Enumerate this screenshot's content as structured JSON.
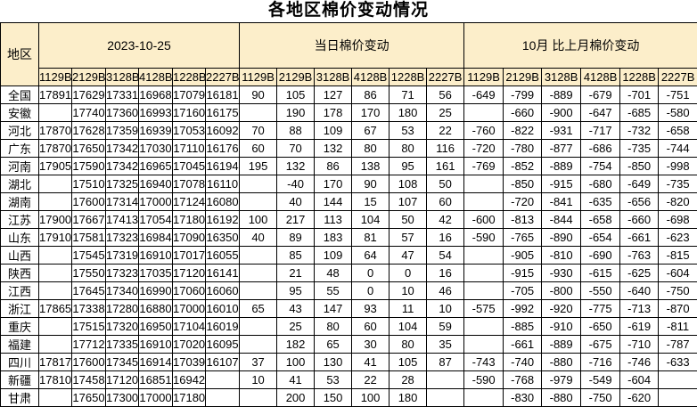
{
  "title": "各地区棉价变动情况",
  "colors": {
    "header_bg": "#FCEECA",
    "border": "#000000",
    "positive_change": "#FF0000",
    "negative_change": "#0070C0"
  },
  "chart_data": {
    "type": "table",
    "title": "各地区棉价变动情况",
    "region_column_header": "地区",
    "sections": [
      {
        "label": "2023-10-25",
        "columns": [
          "1129B",
          "2129B",
          "3128B",
          "4128B",
          "1228B",
          "2227B"
        ]
      },
      {
        "label": "当日棉价变动",
        "columns": [
          "1129B",
          "2129B",
          "3128B",
          "4128B",
          "1228B",
          "2227B"
        ]
      },
      {
        "label": "10月 比上月棉价变动",
        "columns": [
          "1129B",
          "2129B",
          "3128B",
          "4128B",
          "1228B",
          "2227B"
        ]
      }
    ],
    "rows": [
      {
        "region": "全国",
        "price_2023_10_25": [
          "17891",
          "17629",
          "17331",
          "16968",
          "17079",
          "16181"
        ],
        "daily_change": [
          "90",
          "105",
          "127",
          "86",
          "71",
          "56"
        ],
        "monthly_change": [
          "-649",
          "-799",
          "-889",
          "-679",
          "-701",
          "-751"
        ]
      },
      {
        "region": "安徽",
        "price_2023_10_25": [
          "",
          "17740",
          "17360",
          "16993",
          "17160",
          "16175"
        ],
        "daily_change": [
          "",
          "190",
          "178",
          "170",
          "180",
          "25"
        ],
        "monthly_change": [
          "",
          "-660",
          "-900",
          "-647",
          "-685",
          "-580"
        ]
      },
      {
        "region": "河北",
        "price_2023_10_25": [
          "17870",
          "17628",
          "17359",
          "16939",
          "17053",
          "16092"
        ],
        "daily_change": [
          "70",
          "88",
          "109",
          "67",
          "53",
          "22"
        ],
        "monthly_change": [
          "-760",
          "-822",
          "-931",
          "-717",
          "-732",
          "-658"
        ]
      },
      {
        "region": "广东",
        "price_2023_10_25": [
          "17870",
          "17650",
          "17342",
          "17030",
          "17110",
          "16176"
        ],
        "daily_change": [
          "60",
          "70",
          "132",
          "80",
          "80",
          "116"
        ],
        "monthly_change": [
          "-720",
          "-780",
          "-877",
          "-686",
          "-735",
          "-744"
        ]
      },
      {
        "region": "河南",
        "price_2023_10_25": [
          "17905",
          "17590",
          "17342",
          "16965",
          "17045",
          "16194"
        ],
        "daily_change": [
          "195",
          "132",
          "86",
          "138",
          "95",
          "161"
        ],
        "monthly_change": [
          "-769",
          "-852",
          "-889",
          "-754",
          "-850",
          "-998"
        ]
      },
      {
        "region": "湖北",
        "price_2023_10_25": [
          "",
          "17510",
          "17325",
          "16940",
          "17078",
          "16110"
        ],
        "daily_change": [
          "",
          "-40",
          "170",
          "90",
          "108",
          "50"
        ],
        "monthly_change": [
          "",
          "-850",
          "-915",
          "-680",
          "-649",
          "-735"
        ]
      },
      {
        "region": "湖南",
        "price_2023_10_25": [
          "",
          "17600",
          "17314",
          "17000",
          "17124",
          "16080"
        ],
        "daily_change": [
          "",
          "40",
          "144",
          "15",
          "107",
          "60"
        ],
        "monthly_change": [
          "",
          "-720",
          "-841",
          "-635",
          "-656",
          "-820"
        ]
      },
      {
        "region": "江苏",
        "price_2023_10_25": [
          "17900",
          "17667",
          "17413",
          "17054",
          "17180",
          "16192"
        ],
        "daily_change": [
          "100",
          "217",
          "113",
          "104",
          "50",
          "42"
        ],
        "monthly_change": [
          "-600",
          "-813",
          "-844",
          "-658",
          "-660",
          "-698"
        ]
      },
      {
        "region": "山东",
        "price_2023_10_25": [
          "17910",
          "17581",
          "17323",
          "16984",
          "17090",
          "16350"
        ],
        "daily_change": [
          "40",
          "89",
          "183",
          "81",
          "57",
          "16"
        ],
        "monthly_change": [
          "-590",
          "-765",
          "-890",
          "-654",
          "-661",
          "-623"
        ]
      },
      {
        "region": "山西",
        "price_2023_10_25": [
          "",
          "17545",
          "17319",
          "16910",
          "17017",
          "16055"
        ],
        "daily_change": [
          "",
          "85",
          "109",
          "64",
          "47",
          "54"
        ],
        "monthly_change": [
          "",
          "-905",
          "-810",
          "-690",
          "-763",
          "-815"
        ]
      },
      {
        "region": "陕西",
        "price_2023_10_25": [
          "",
          "17550",
          "17323",
          "17035",
          "17120",
          "16141"
        ],
        "daily_change": [
          "",
          "21",
          "48",
          "0",
          "0",
          "16"
        ],
        "monthly_change": [
          "",
          "-915",
          "-930",
          "-615",
          "-625",
          "-604"
        ]
      },
      {
        "region": "江西",
        "price_2023_10_25": [
          "",
          "17645",
          "17340",
          "16990",
          "17060",
          "16060"
        ],
        "daily_change": [
          "",
          "95",
          "55",
          "0",
          "10",
          "46"
        ],
        "monthly_change": [
          "",
          "-705",
          "-800",
          "-550",
          "-640",
          "-750"
        ]
      },
      {
        "region": "浙江",
        "price_2023_10_25": [
          "17865",
          "17338",
          "17280",
          "16880",
          "17000",
          "16010"
        ],
        "daily_change": [
          "65",
          "43",
          "147",
          "93",
          "11",
          "10"
        ],
        "monthly_change": [
          "-575",
          "-992",
          "-920",
          "-775",
          "-713",
          "-870"
        ]
      },
      {
        "region": "重庆",
        "price_2023_10_25": [
          "",
          "17515",
          "17320",
          "16950",
          "17104",
          "16019"
        ],
        "daily_change": [
          "",
          "25",
          "80",
          "60",
          "104",
          "59"
        ],
        "monthly_change": [
          "",
          "-885",
          "-910",
          "-650",
          "-619",
          "-811"
        ]
      },
      {
        "region": "福建",
        "price_2023_10_25": [
          "",
          "17712",
          "17335",
          "16910",
          "17020",
          "16095"
        ],
        "daily_change": [
          "",
          "182",
          "65",
          "30",
          "80",
          "35"
        ],
        "monthly_change": [
          "",
          "-661",
          "-889",
          "-675",
          "-710",
          "-787"
        ]
      },
      {
        "region": "四川",
        "price_2023_10_25": [
          "17817",
          "17600",
          "17345",
          "16914",
          "17039",
          "16107"
        ],
        "daily_change": [
          "37",
          "100",
          "130",
          "41",
          "105",
          "87"
        ],
        "monthly_change": [
          "-743",
          "-740",
          "-880",
          "-716",
          "-746",
          "-633"
        ]
      },
      {
        "region": "新疆",
        "price_2023_10_25": [
          "17810",
          "17458",
          "17120",
          "16851",
          "16942",
          ""
        ],
        "daily_change": [
          "10",
          "41",
          "53",
          "22",
          "28",
          ""
        ],
        "monthly_change": [
          "-590",
          "-768",
          "-979",
          "-549",
          "-604",
          ""
        ]
      },
      {
        "region": "甘肃",
        "price_2023_10_25": [
          "",
          "17650",
          "17300",
          "17000",
          "17180",
          ""
        ],
        "daily_change": [
          "",
          "200",
          "150",
          "100",
          "180",
          ""
        ],
        "monthly_change": [
          "",
          "-830",
          "-880",
          "-750",
          "-620",
          ""
        ]
      }
    ]
  }
}
